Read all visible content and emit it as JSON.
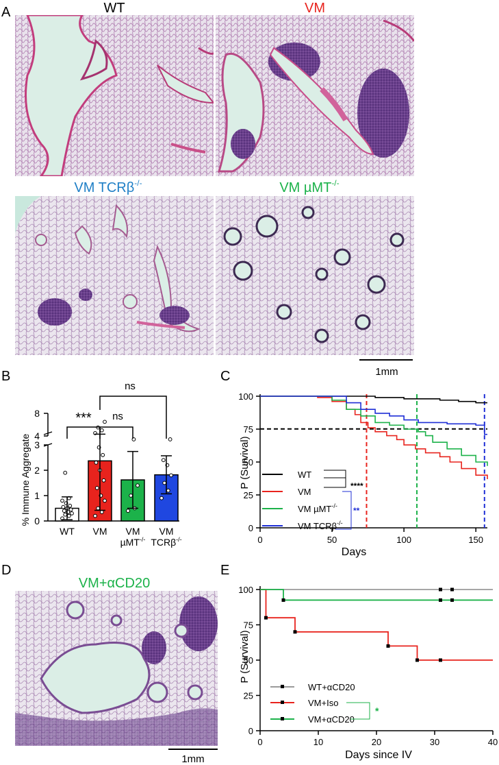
{
  "panel_labels": {
    "A": "A",
    "B": "B",
    "C": "C",
    "D": "D",
    "E": "E"
  },
  "histology": {
    "wt_title": "WT",
    "vm_title": "VM",
    "tcrb_title": "VM TCRβ",
    "tcrb_sup": "-/-",
    "umt_title": "VM µMT",
    "umt_sup": "-/-",
    "d_title": "VM+αCD20",
    "scale_label": "1mm",
    "colors": {
      "wt": "#000000",
      "vm": "#e8231d",
      "tcrb": "#1f7fc6",
      "umt": "#1cb24a",
      "d": "#1cb24a"
    }
  },
  "panel_b": {
    "ylabel": "% Immune Aggregate",
    "ns_top": "ns",
    "ns_mid": "ns",
    "sig": "***",
    "categories": [
      {
        "line1": "WT",
        "line2": ""
      },
      {
        "line1": "VM",
        "line2": ""
      },
      {
        "line1": "VM",
        "line2": "µMT",
        "sup": "-/-"
      },
      {
        "line1": "VM",
        "line2": "TCRβ",
        "sup": "-/-"
      }
    ],
    "yticks": [
      "0",
      "1",
      "2",
      "3",
      "4",
      "8"
    ]
  },
  "panel_c": {
    "ylabel": "P (Survival)",
    "xlabel": "Days",
    "yticks": [
      "0",
      "25",
      "50",
      "75",
      "100"
    ],
    "xticks": [
      "0",
      "50",
      "100",
      "150"
    ],
    "legend": [
      {
        "label": "WT",
        "sup": ""
      },
      {
        "label": "VM",
        "sup": ""
      },
      {
        "label": "VM µMT",
        "sup": "-/-"
      },
      {
        "label": "VM TCRβ",
        "sup": "-/-"
      }
    ],
    "sig1": "****",
    "sig2": "**"
  },
  "panel_e": {
    "ylabel": "P (Survival)",
    "xlabel": "Days since IV",
    "yticks": [
      "0",
      "25",
      "50",
      "75",
      "100"
    ],
    "xticks": [
      "0",
      "10",
      "20",
      "30",
      "40"
    ],
    "legend": [
      "WT+αCD20",
      "VM+Iso",
      "VM+αCD20"
    ],
    "sig": "*"
  },
  "chart_data": [
    {
      "type": "bar",
      "title": "",
      "ylabel": "% Immune Aggregate",
      "categories": [
        "WT",
        "VM",
        "VM µMT-/-",
        "VM TCRβ-/-"
      ],
      "values": [
        0.5,
        2.37,
        1.62,
        1.82
      ],
      "errors": [
        0.45,
        1.95,
        1.12,
        0.75
      ],
      "colors": [
        "#ffffff",
        "#e8231d",
        "#1cb24a",
        "#1f47e0"
      ],
      "ylim": [
        0,
        8
      ],
      "axis_break": [
        3,
        4
      ],
      "points": {
        "WT": [
          0.1,
          0.2,
          0.25,
          0.3,
          0.35,
          0.4,
          0.45,
          0.5,
          0.55,
          0.6,
          0.7,
          0.8,
          0.9,
          1.9
        ],
        "VM": [
          0.2,
          0.35,
          0.5,
          0.8,
          1.0,
          1.3,
          1.6,
          2.0,
          2.3,
          2.6,
          2.9,
          4.5,
          5.0,
          5.5,
          6.5
        ],
        "VM µMT-/-": [
          0.4,
          0.5,
          1.0,
          1.4,
          3.4
        ],
        "VM TCRβ-/-": [
          0.9,
          1.2,
          1.5,
          1.8,
          2.2,
          2.4,
          3.4
        ]
      }
    },
    {
      "type": "line",
      "ylabel": "P (Survival)",
      "xlabel": "Days",
      "xlim": [
        0,
        158
      ],
      "ylim": [
        0,
        100
      ],
      "reference_line": {
        "y": 75
      },
      "median_lines": [
        {
          "x": 74,
          "color": "#e8231d"
        },
        {
          "x": 109,
          "color": "#1cb24a"
        },
        {
          "x": 156,
          "color": "#1f2fd6"
        }
      ],
      "series": [
        {
          "name": "WT",
          "color": "#000000",
          "points": [
            [
              0,
              100
            ],
            [
              60,
              100
            ],
            [
              80,
              99
            ],
            [
              100,
              98
            ],
            [
              125,
              97
            ],
            [
              138,
              96
            ],
            [
              150,
              95
            ],
            [
              158,
              95
            ]
          ]
        },
        {
          "name": "VM",
          "color": "#e8231d",
          "points": [
            [
              0,
              100
            ],
            [
              30,
              100
            ],
            [
              40,
              99
            ],
            [
              50,
              96
            ],
            [
              60,
              90
            ],
            [
              66,
              86
            ],
            [
              70,
              80
            ],
            [
              75,
              76
            ],
            [
              80,
              73
            ],
            [
              88,
              70
            ],
            [
              95,
              67
            ],
            [
              100,
              63
            ],
            [
              108,
              60
            ],
            [
              115,
              57
            ],
            [
              125,
              54
            ],
            [
              132,
              50
            ],
            [
              140,
              45
            ],
            [
              150,
              40
            ],
            [
              158,
              37
            ]
          ]
        },
        {
          "name": "VM µMT-/-",
          "color": "#1cb24a",
          "points": [
            [
              0,
              100
            ],
            [
              40,
              100
            ],
            [
              50,
              97
            ],
            [
              60,
              90
            ],
            [
              70,
              85
            ],
            [
              80,
              80
            ],
            [
              90,
              78
            ],
            [
              100,
              75
            ],
            [
              110,
              73
            ],
            [
              115,
              70
            ],
            [
              120,
              65
            ],
            [
              130,
              60
            ],
            [
              140,
              55
            ],
            [
              150,
              50
            ],
            [
              158,
              47
            ]
          ]
        },
        {
          "name": "VM TCRβ-/-",
          "color": "#1f2fd6",
          "points": [
            [
              0,
              100
            ],
            [
              50,
              100
            ],
            [
              60,
              95
            ],
            [
              70,
              90
            ],
            [
              80,
              87
            ],
            [
              90,
              85
            ],
            [
              100,
              82
            ],
            [
              110,
              80
            ],
            [
              130,
              79
            ],
            [
              150,
              78
            ],
            [
              155,
              78
            ],
            [
              156,
              71
            ],
            [
              158,
              71
            ]
          ]
        }
      ]
    },
    {
      "type": "line",
      "ylabel": "P (Survival)",
      "xlabel": "Days since IV",
      "xlim": [
        0,
        40
      ],
      "ylim": [
        0,
        100
      ],
      "series": [
        {
          "name": "WT+αCD20",
          "color": "#9a9a9a",
          "points": [
            [
              0,
              100
            ],
            [
              40,
              100
            ]
          ]
        },
        {
          "name": "VM+Iso",
          "color": "#e8231d",
          "points": [
            [
              0,
              100
            ],
            [
              1,
              100
            ],
            [
              1,
              80
            ],
            [
              6,
              80
            ],
            [
              6,
              70
            ],
            [
              22,
              70
            ],
            [
              22,
              60
            ],
            [
              27,
              60
            ],
            [
              27,
              50
            ],
            [
              40,
              50
            ]
          ]
        },
        {
          "name": "VM+αCD20",
          "color": "#1cb24a",
          "points": [
            [
              0,
              100
            ],
            [
              4,
              100
            ],
            [
              4,
              92.5
            ],
            [
              40,
              92.5
            ]
          ]
        }
      ]
    }
  ]
}
